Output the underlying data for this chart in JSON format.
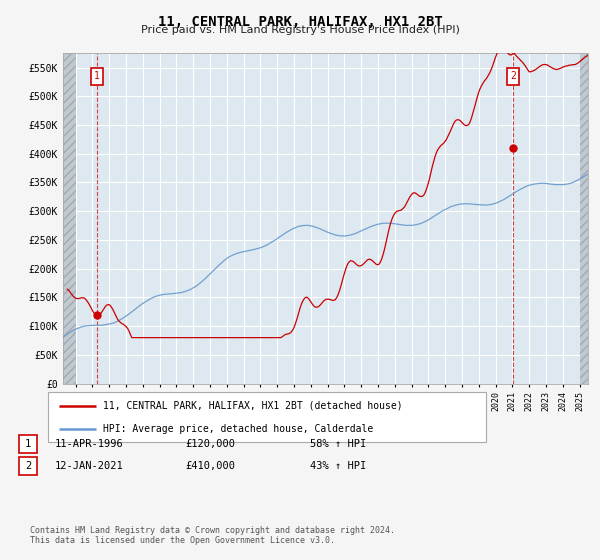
{
  "title": "11, CENTRAL PARK, HALIFAX, HX1 2BT",
  "subtitle": "Price paid vs. HM Land Registry's House Price Index (HPI)",
  "legend_line1": "11, CENTRAL PARK, HALIFAX, HX1 2BT (detached house)",
  "legend_line2": "HPI: Average price, detached house, Calderdale",
  "annotation1_label": "1",
  "annotation1_date": "11-APR-1996",
  "annotation1_price": "£120,000",
  "annotation1_hpi": "58% ↑ HPI",
  "annotation2_label": "2",
  "annotation2_date": "12-JAN-2021",
  "annotation2_price": "£410,000",
  "annotation2_hpi": "43% ↑ HPI",
  "footnote": "Contains HM Land Registry data © Crown copyright and database right 2024.\nThis data is licensed under the Open Government Licence v3.0.",
  "red_color": "#cc0000",
  "blue_color": "#6699cc",
  "plot_bg_color": "#dde8f0",
  "background_color": "#f5f5f5",
  "hatch_color": "#c0c8d0",
  "grid_color": "#ffffff",
  "ylim": [
    0,
    575000
  ],
  "xlim_start": 1994.25,
  "xlim_end": 2025.5,
  "yticks": [
    0,
    50000,
    100000,
    150000,
    200000,
    250000,
    300000,
    350000,
    400000,
    450000,
    500000,
    550000
  ],
  "ytick_labels": [
    "£0",
    "£50K",
    "£100K",
    "£150K",
    "£200K",
    "£250K",
    "£300K",
    "£350K",
    "£400K",
    "£450K",
    "£500K",
    "£550K"
  ],
  "t1": 1996.27,
  "t2": 2021.04,
  "p1": 120000,
  "p2": 410000
}
